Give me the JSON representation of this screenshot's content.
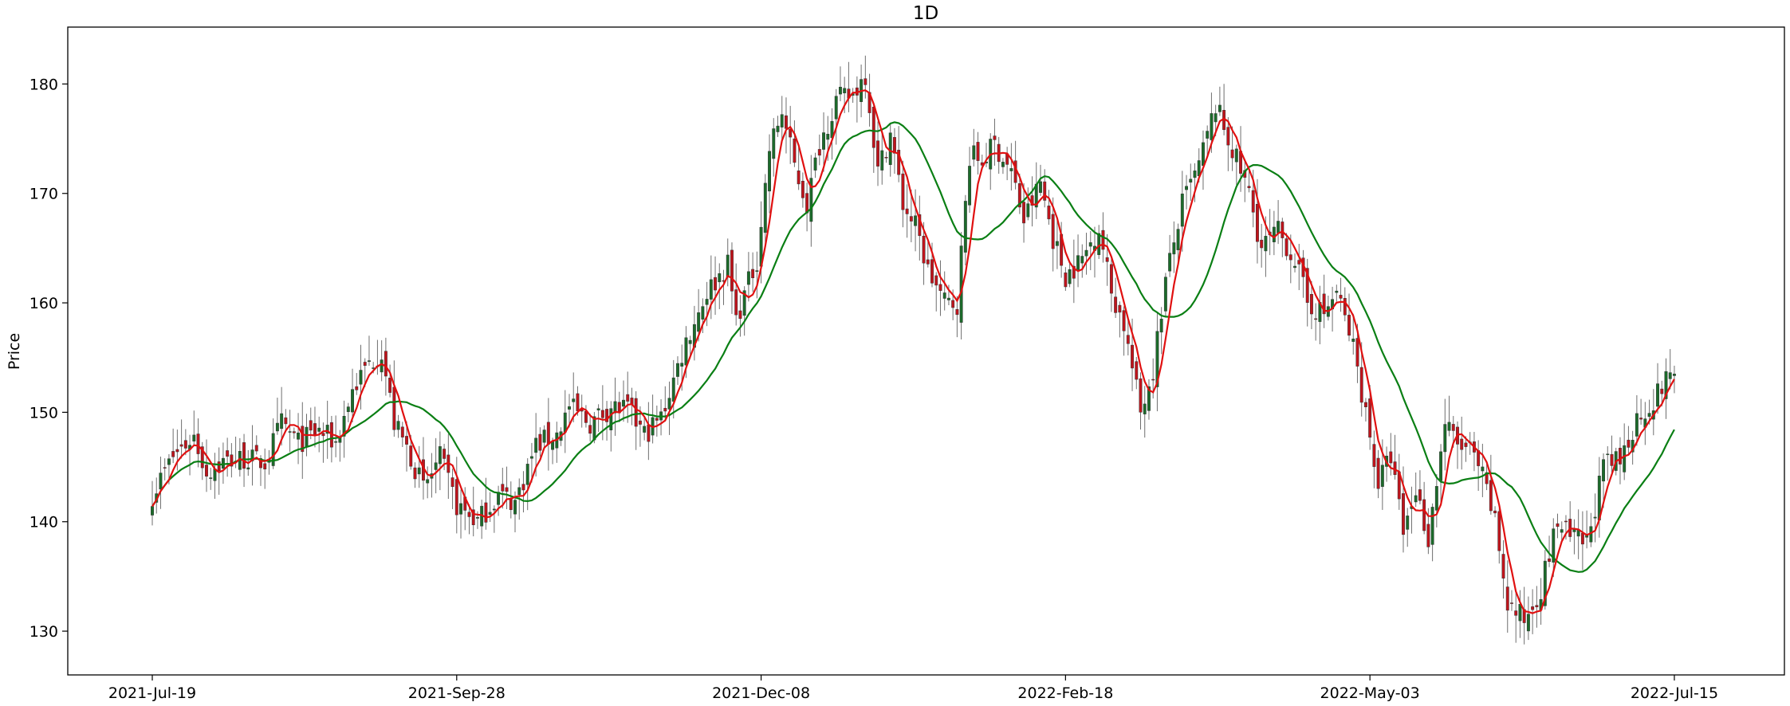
{
  "chart_data": {
    "type": "candlestick",
    "title": "1D",
    "xlabel": "",
    "ylabel": "Price",
    "ylim": [
      126.0,
      185.2
    ],
    "y_ticks": [
      130,
      140,
      150,
      160,
      170,
      180
    ],
    "x_tick_labels": [
      "2021-Jul-19",
      "2021-Sep-28",
      "2021-Dec-08",
      "2022-Feb-18",
      "2022-May-03",
      "2022-Jul-15"
    ],
    "grid": false,
    "legend": "none",
    "colors": {
      "up": "#1b6b2a",
      "down": "#c0141c",
      "wick": "#6e6e6e",
      "ma_fast": "#e01010",
      "ma_slow": "#0a7f14"
    },
    "series": [
      {
        "name": "",
        "type": "candlestick",
        "close_trajectory_knots": [
          [
            0,
            142.5
          ],
          [
            5,
            146.0
          ],
          [
            10,
            147.8
          ],
          [
            13,
            144.5
          ],
          [
            17,
            145.5
          ],
          [
            22,
            145.8
          ],
          [
            27,
            145.4
          ],
          [
            31,
            149.0
          ],
          [
            35,
            147.2
          ],
          [
            40,
            148.3
          ],
          [
            44,
            147.2
          ],
          [
            48,
            152.0
          ],
          [
            52,
            154.5
          ],
          [
            55,
            155.6
          ],
          [
            58,
            149.0
          ],
          [
            62,
            146.0
          ],
          [
            65,
            143.0
          ],
          [
            69,
            145.8
          ],
          [
            73,
            141.5
          ],
          [
            78,
            140.0
          ],
          [
            83,
            142.5
          ],
          [
            87,
            141.8
          ],
          [
            92,
            147.0
          ],
          [
            97,
            148.0
          ],
          [
            100,
            150.5
          ],
          [
            105,
            149.0
          ],
          [
            110,
            150.5
          ],
          [
            114,
            150.2
          ],
          [
            118,
            148.0
          ],
          [
            122,
            149.5
          ],
          [
            128,
            156.5
          ],
          [
            133,
            161.0
          ],
          [
            138,
            163.5
          ],
          [
            140,
            158.5
          ],
          [
            145,
            164.0
          ],
          [
            148,
            174.0
          ],
          [
            151,
            177.5
          ],
          [
            154,
            172.5
          ],
          [
            157,
            169.0
          ],
          [
            160,
            174.5
          ],
          [
            164,
            178.5
          ],
          [
            168,
            179.0
          ],
          [
            171,
            181.0
          ],
          [
            174,
            172.0
          ],
          [
            177,
            175.5
          ],
          [
            180,
            169.0
          ],
          [
            183,
            167.0
          ],
          [
            186,
            163.0
          ],
          [
            190,
            160.0
          ],
          [
            193,
            160.0
          ],
          [
            196,
            173.5
          ],
          [
            199,
            173.0
          ],
          [
            202,
            174.5
          ],
          [
            206,
            172.0
          ],
          [
            209,
            167.5
          ],
          [
            213,
            171.0
          ],
          [
            216,
            166.0
          ],
          [
            219,
            162.5
          ],
          [
            223,
            164.0
          ],
          [
            227,
            167.0
          ],
          [
            230,
            161.0
          ],
          [
            233,
            158.0
          ],
          [
            237,
            150.0
          ],
          [
            240,
            154.0
          ],
          [
            243,
            162.0
          ],
          [
            247,
            169.0
          ],
          [
            251,
            172.5
          ],
          [
            255,
            178.0
          ],
          [
            260,
            173.0
          ],
          [
            263,
            170.0
          ],
          [
            266,
            165.0
          ],
          [
            270,
            166.5
          ],
          [
            274,
            164.0
          ],
          [
            277,
            160.0
          ],
          [
            281,
            159.0
          ],
          [
            284,
            161.0
          ],
          [
            288,
            156.0
          ],
          [
            291,
            150.0
          ],
          [
            294,
            143.5
          ],
          [
            297,
            146.0
          ],
          [
            300,
            139.0
          ],
          [
            303,
            143.0
          ],
          [
            306,
            138.5
          ],
          [
            310,
            149.0
          ],
          [
            313,
            147.0
          ],
          [
            316,
            146.5
          ],
          [
            319,
            144.0
          ],
          [
            322,
            140.0
          ],
          [
            325,
            132.5
          ],
          [
            329,
            131.0
          ],
          [
            333,
            134.0
          ],
          [
            337,
            140.0
          ],
          [
            340,
            138.5
          ],
          [
            344,
            138.0
          ],
          [
            348,
            145.0
          ],
          [
            352,
            145.5
          ],
          [
            356,
            149.5
          ],
          [
            360,
            151.0
          ],
          [
            363,
            153.0
          ],
          [
            365,
            154.0
          ]
        ]
      },
      {
        "name": "",
        "type": "line",
        "role": "fast moving average"
      },
      {
        "name": "",
        "type": "line",
        "role": "slow moving average"
      }
    ]
  }
}
